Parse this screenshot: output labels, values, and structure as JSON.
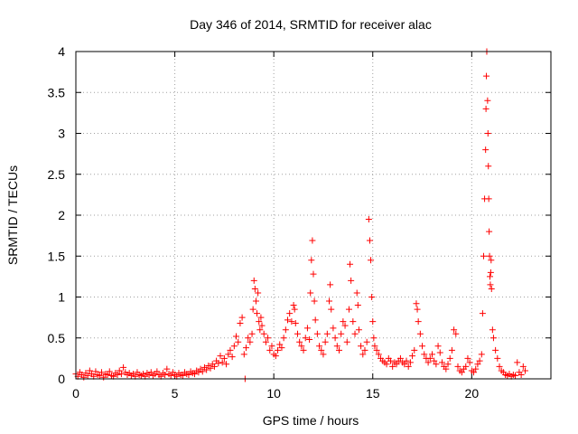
{
  "chart_data": {
    "type": "scatter",
    "title": "Day 346 of 2014, SRMTID for receiver alac",
    "xlabel": "GPS time / hours",
    "ylabel": "SRMTID / TECUs",
    "xlim": [
      0,
      24
    ],
    "ylim": [
      0,
      4
    ],
    "xticks": [
      0,
      5,
      10,
      15,
      20
    ],
    "xtick_labels": [
      "0",
      "5",
      "10",
      "15",
      "20"
    ],
    "yticks": [
      0,
      0.5,
      1,
      1.5,
      2,
      2.5,
      3,
      3.5,
      4
    ],
    "ytick_labels": [
      "0",
      "0.5",
      "1",
      "1.5",
      "2",
      "2.5",
      "3",
      "3.5",
      "4"
    ],
    "grid": true,
    "marker": "+",
    "color": "#ff0000",
    "series": [
      {
        "name": "alac",
        "points": [
          [
            0.0,
            0.06
          ],
          [
            0.1,
            0.03
          ],
          [
            0.2,
            0.08
          ],
          [
            0.3,
            0.05
          ],
          [
            0.4,
            0.02
          ],
          [
            0.5,
            0.07
          ],
          [
            0.6,
            0.04
          ],
          [
            0.7,
            0.1
          ],
          [
            0.8,
            0.06
          ],
          [
            0.9,
            0.03
          ],
          [
            1.0,
            0.09
          ],
          [
            1.1,
            0.05
          ],
          [
            1.2,
            0.04
          ],
          [
            1.3,
            0.08
          ],
          [
            1.4,
            0.02
          ],
          [
            1.5,
            0.06
          ],
          [
            1.6,
            0.05
          ],
          [
            1.7,
            0.09
          ],
          [
            1.8,
            0.04
          ],
          [
            1.9,
            0.03
          ],
          [
            2.0,
            0.07
          ],
          [
            2.1,
            0.05
          ],
          [
            2.2,
            0.1
          ],
          [
            2.3,
            0.06
          ],
          [
            2.4,
            0.14
          ],
          [
            2.5,
            0.08
          ],
          [
            2.6,
            0.05
          ],
          [
            2.7,
            0.07
          ],
          [
            2.8,
            0.04
          ],
          [
            2.9,
            0.06
          ],
          [
            3.0,
            0.03
          ],
          [
            3.1,
            0.08
          ],
          [
            3.2,
            0.05
          ],
          [
            3.3,
            0.04
          ],
          [
            3.4,
            0.06
          ],
          [
            3.5,
            0.03
          ],
          [
            3.6,
            0.07
          ],
          [
            3.7,
            0.05
          ],
          [
            3.8,
            0.08
          ],
          [
            3.9,
            0.04
          ],
          [
            4.0,
            0.06
          ],
          [
            4.1,
            0.09
          ],
          [
            4.2,
            0.05
          ],
          [
            4.3,
            0.03
          ],
          [
            4.4,
            0.07
          ],
          [
            4.5,
            0.05
          ],
          [
            4.6,
            0.12
          ],
          [
            4.7,
            0.06
          ],
          [
            4.8,
            0.04
          ],
          [
            4.9,
            0.08
          ],
          [
            5.0,
            0.05
          ],
          [
            5.1,
            0.03
          ],
          [
            5.2,
            0.07
          ],
          [
            5.3,
            0.05
          ],
          [
            5.4,
            0.04
          ],
          [
            5.5,
            0.08
          ],
          [
            5.6,
            0.06
          ],
          [
            5.7,
            0.05
          ],
          [
            5.8,
            0.09
          ],
          [
            5.9,
            0.07
          ],
          [
            6.0,
            0.06
          ],
          [
            6.1,
            0.1
          ],
          [
            6.2,
            0.08
          ],
          [
            6.3,
            0.12
          ],
          [
            6.4,
            0.09
          ],
          [
            6.5,
            0.14
          ],
          [
            6.6,
            0.11
          ],
          [
            6.7,
            0.16
          ],
          [
            6.8,
            0.13
          ],
          [
            6.9,
            0.18
          ],
          [
            7.0,
            0.15
          ],
          [
            7.1,
            0.22
          ],
          [
            7.2,
            0.19
          ],
          [
            7.3,
            0.28
          ],
          [
            7.4,
            0.2
          ],
          [
            7.5,
            0.25
          ],
          [
            7.6,
            0.18
          ],
          [
            7.7,
            0.3
          ],
          [
            7.8,
            0.35
          ],
          [
            7.9,
            0.27
          ],
          [
            8.0,
            0.4
          ],
          [
            8.1,
            0.52
          ],
          [
            8.2,
            0.45
          ],
          [
            8.3,
            0.68
          ],
          [
            8.4,
            0.75
          ],
          [
            8.5,
            0.3
          ],
          [
            8.55,
            0.0
          ],
          [
            8.6,
            0.38
          ],
          [
            8.7,
            0.5
          ],
          [
            8.8,
            0.45
          ],
          [
            8.9,
            0.55
          ],
          [
            8.95,
            0.85
          ],
          [
            9.0,
            1.2
          ],
          [
            9.05,
            1.1
          ],
          [
            9.1,
            0.95
          ],
          [
            9.15,
            0.8
          ],
          [
            9.2,
            1.05
          ],
          [
            9.25,
            0.7
          ],
          [
            9.3,
            0.6
          ],
          [
            9.35,
            0.75
          ],
          [
            9.4,
            0.65
          ],
          [
            9.5,
            0.55
          ],
          [
            9.6,
            0.45
          ],
          [
            9.7,
            0.5
          ],
          [
            9.8,
            0.35
          ],
          [
            9.9,
            0.4
          ],
          [
            10.0,
            0.3
          ],
          [
            10.1,
            0.28
          ],
          [
            10.2,
            0.35
          ],
          [
            10.3,
            0.42
          ],
          [
            10.4,
            0.38
          ],
          [
            10.5,
            0.5
          ],
          [
            10.6,
            0.6
          ],
          [
            10.7,
            0.72
          ],
          [
            10.8,
            0.8
          ],
          [
            10.9,
            0.7
          ],
          [
            11.0,
            0.9
          ],
          [
            11.05,
            0.85
          ],
          [
            11.1,
            0.68
          ],
          [
            11.2,
            0.55
          ],
          [
            11.3,
            0.45
          ],
          [
            11.4,
            0.4
          ],
          [
            11.5,
            0.35
          ],
          [
            11.6,
            0.5
          ],
          [
            11.7,
            0.62
          ],
          [
            11.8,
            0.48
          ],
          [
            11.85,
            1.05
          ],
          [
            11.9,
            1.45
          ],
          [
            11.95,
            1.69
          ],
          [
            12.0,
            1.28
          ],
          [
            12.05,
            0.95
          ],
          [
            12.1,
            0.72
          ],
          [
            12.2,
            0.55
          ],
          [
            12.3,
            0.4
          ],
          [
            12.4,
            0.35
          ],
          [
            12.5,
            0.3
          ],
          [
            12.6,
            0.45
          ],
          [
            12.7,
            0.55
          ],
          [
            12.8,
            0.95
          ],
          [
            12.85,
            1.15
          ],
          [
            12.9,
            0.85
          ],
          [
            13.0,
            0.62
          ],
          [
            13.1,
            0.5
          ],
          [
            13.2,
            0.4
          ],
          [
            13.3,
            0.35
          ],
          [
            13.4,
            0.55
          ],
          [
            13.5,
            0.7
          ],
          [
            13.6,
            0.65
          ],
          [
            13.7,
            0.45
          ],
          [
            13.8,
            0.85
          ],
          [
            13.85,
            1.4
          ],
          [
            13.9,
            1.2
          ],
          [
            14.0,
            0.7
          ],
          [
            14.1,
            0.55
          ],
          [
            14.2,
            1.05
          ],
          [
            14.25,
            0.9
          ],
          [
            14.3,
            0.6
          ],
          [
            14.4,
            0.4
          ],
          [
            14.5,
            0.3
          ],
          [
            14.6,
            0.35
          ],
          [
            14.7,
            0.45
          ],
          [
            14.8,
            1.95
          ],
          [
            14.85,
            1.69
          ],
          [
            14.9,
            1.45
          ],
          [
            14.95,
            1.0
          ],
          [
            15.0,
            0.7
          ],
          [
            15.05,
            0.5
          ],
          [
            15.1,
            0.4
          ],
          [
            15.2,
            0.35
          ],
          [
            15.3,
            0.3
          ],
          [
            15.4,
            0.25
          ],
          [
            15.5,
            0.22
          ],
          [
            15.6,
            0.2
          ],
          [
            15.7,
            0.18
          ],
          [
            15.8,
            0.25
          ],
          [
            15.9,
            0.22
          ],
          [
            16.0,
            0.15
          ],
          [
            16.1,
            0.2
          ],
          [
            16.2,
            0.18
          ],
          [
            16.3,
            0.22
          ],
          [
            16.4,
            0.25
          ],
          [
            16.5,
            0.2
          ],
          [
            16.6,
            0.18
          ],
          [
            16.7,
            0.22
          ],
          [
            16.8,
            0.15
          ],
          [
            16.9,
            0.2
          ],
          [
            17.0,
            0.28
          ],
          [
            17.1,
            0.35
          ],
          [
            17.2,
            0.92
          ],
          [
            17.25,
            0.85
          ],
          [
            17.3,
            0.7
          ],
          [
            17.4,
            0.55
          ],
          [
            17.5,
            0.4
          ],
          [
            17.6,
            0.3
          ],
          [
            17.7,
            0.25
          ],
          [
            17.8,
            0.2
          ],
          [
            17.9,
            0.25
          ],
          [
            18.0,
            0.3
          ],
          [
            18.1,
            0.22
          ],
          [
            18.2,
            0.18
          ],
          [
            18.3,
            0.4
          ],
          [
            18.4,
            0.32
          ],
          [
            18.5,
            0.2
          ],
          [
            18.6,
            0.15
          ],
          [
            18.7,
            0.12
          ],
          [
            18.8,
            0.18
          ],
          [
            18.9,
            0.25
          ],
          [
            19.0,
            0.35
          ],
          [
            19.1,
            0.6
          ],
          [
            19.2,
            0.55
          ],
          [
            19.3,
            0.15
          ],
          [
            19.4,
            0.1
          ],
          [
            19.5,
            0.08
          ],
          [
            19.6,
            0.12
          ],
          [
            19.7,
            0.15
          ],
          [
            19.8,
            0.25
          ],
          [
            19.9,
            0.2
          ],
          [
            20.0,
            0.1
          ],
          [
            20.1,
            0.08
          ],
          [
            20.2,
            0.12
          ],
          [
            20.3,
            0.18
          ],
          [
            20.4,
            0.22
          ],
          [
            20.5,
            0.3
          ],
          [
            20.55,
            0.8
          ],
          [
            20.6,
            1.5
          ],
          [
            20.65,
            2.2
          ],
          [
            20.7,
            2.8
          ],
          [
            20.72,
            3.3
          ],
          [
            20.74,
            3.7
          ],
          [
            20.76,
            4.0
          ],
          [
            20.8,
            3.4
          ],
          [
            20.82,
            3.0
          ],
          [
            20.84,
            2.6
          ],
          [
            20.86,
            2.2
          ],
          [
            20.88,
            1.8
          ],
          [
            20.9,
            1.5
          ],
          [
            20.92,
            1.25
          ],
          [
            20.94,
            1.15
          ],
          [
            20.96,
            1.3
          ],
          [
            20.98,
            1.45
          ],
          [
            21.0,
            1.1
          ],
          [
            21.05,
            0.6
          ],
          [
            21.1,
            0.5
          ],
          [
            21.2,
            0.35
          ],
          [
            21.3,
            0.25
          ],
          [
            21.4,
            0.15
          ],
          [
            21.5,
            0.1
          ],
          [
            21.6,
            0.08
          ],
          [
            21.7,
            0.05
          ],
          [
            21.8,
            0.04
          ],
          [
            21.9,
            0.06
          ],
          [
            22.0,
            0.03
          ],
          [
            22.1,
            0.05
          ],
          [
            22.2,
            0.04
          ],
          [
            22.3,
            0.2
          ],
          [
            22.4,
            0.08
          ],
          [
            22.5,
            0.05
          ],
          [
            22.6,
            0.15
          ],
          [
            22.7,
            0.1
          ]
        ]
      }
    ]
  }
}
